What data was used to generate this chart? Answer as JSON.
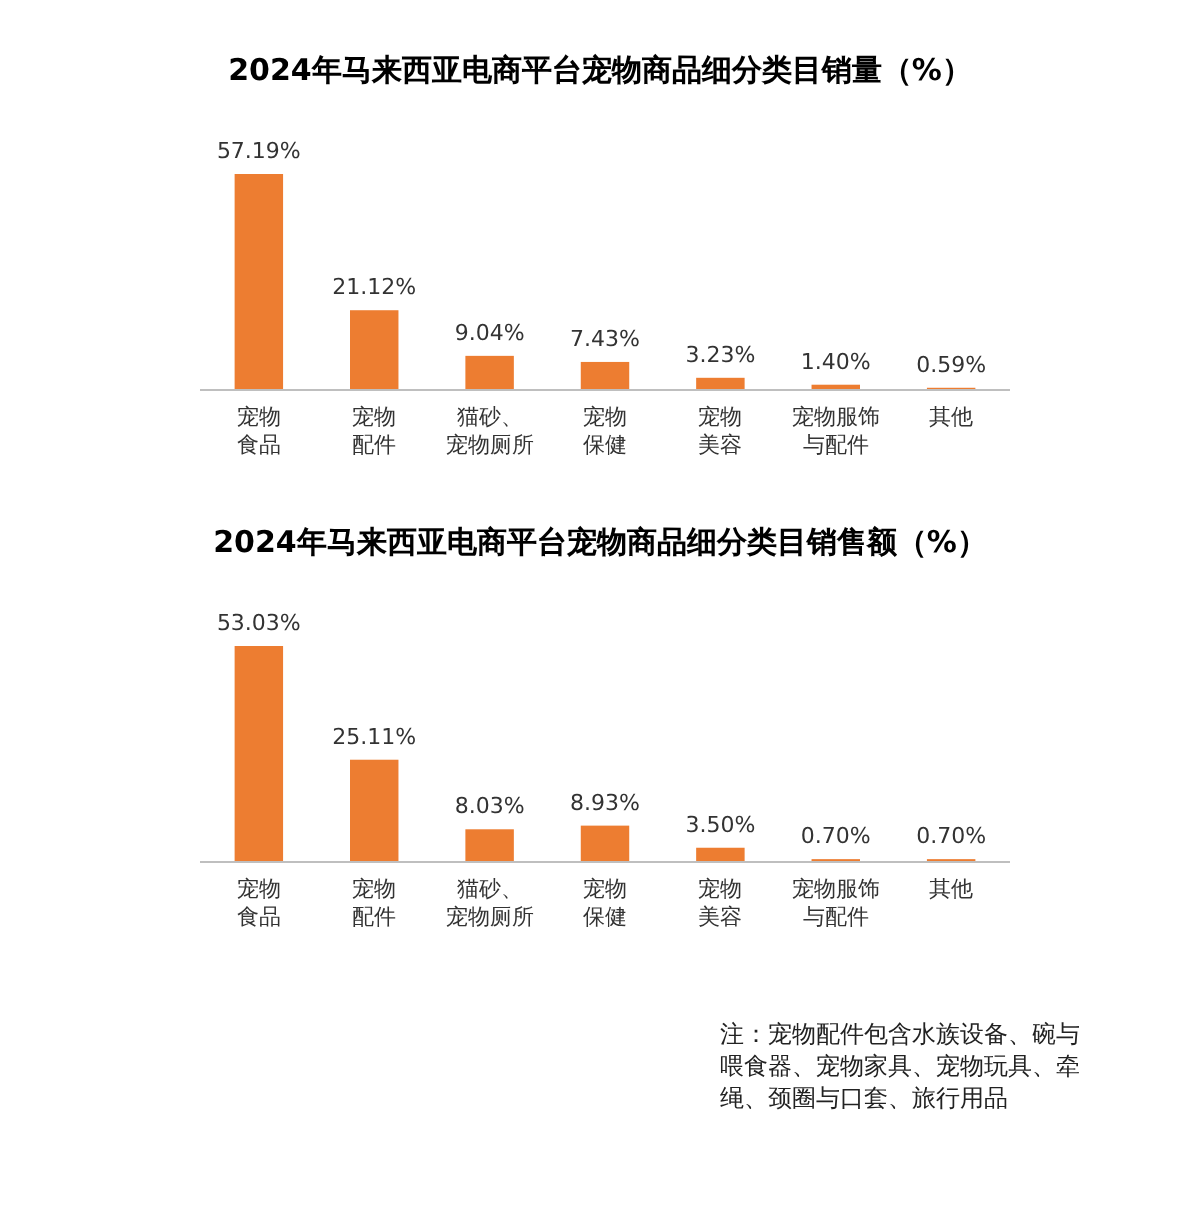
{
  "chart_data": [
    {
      "type": "bar",
      "title": "2024年马来西亚电商平台宠物商品细分类目销量（%）",
      "categories": [
        "宠物食品",
        "宠物配件",
        "猫砂、宠物厕所",
        "宠物保健",
        "宠物美容",
        "宠物服饰与配件",
        "其他"
      ],
      "values": [
        57.19,
        21.12,
        9.04,
        7.43,
        3.23,
        1.4,
        0.59
      ],
      "color": "#ed7d31",
      "value_labels": [
        "57.19%",
        "21.12%",
        "9.04%",
        "7.43%",
        "3.23%",
        "1.40%",
        "0.59%"
      ]
    },
    {
      "type": "bar",
      "title": "2024年马来西亚电商平台宠物商品细分类目销售额（%）",
      "categories": [
        "宠物食品",
        "宠物配件",
        "猫砂、宠物厕所",
        "宠物保健",
        "宠物美容",
        "宠物服饰与配件",
        "其他"
      ],
      "values": [
        53.03,
        25.11,
        8.03,
        8.93,
        3.5,
        0.7,
        0.7
      ],
      "color": "#ed7d31",
      "value_labels": [
        "53.03%",
        "25.11%",
        "8.03%",
        "8.93%",
        "3.50%",
        "0.70%",
        "0.70%"
      ],
      "annotations": [
        "注：宠物配件包含水族设备、碗与喂食器、宠物家具、宠物玩具、牵绳、颈圈与口套、旅行用品"
      ]
    }
  ]
}
